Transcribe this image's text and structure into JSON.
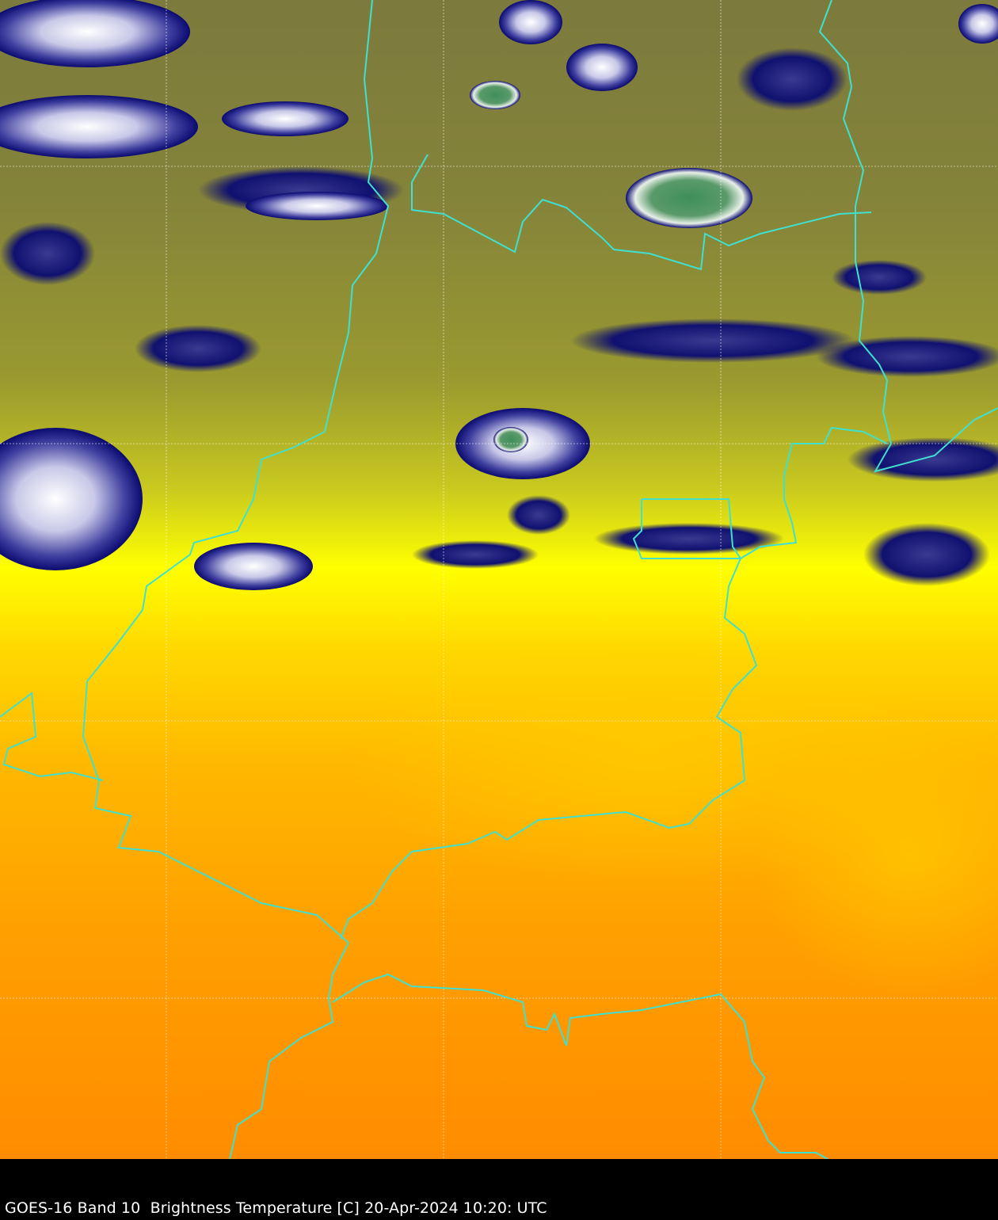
{
  "image": {
    "caption": "GOES-16 Band 10  Brightness Temperature [C] 20-Apr-2024 10:20: UTC",
    "colors": {
      "border": "#3fe0d0",
      "gridline": "#ffffff",
      "cold_cloud_top": "#4a7a3a",
      "cloud_edge": "#0a0a70",
      "mid_level": "#8c8c3a",
      "warm_yellow": "#ffff00",
      "warm_orange": "#ffa000",
      "hottest": "#ff8800",
      "background": "#000000"
    }
  }
}
